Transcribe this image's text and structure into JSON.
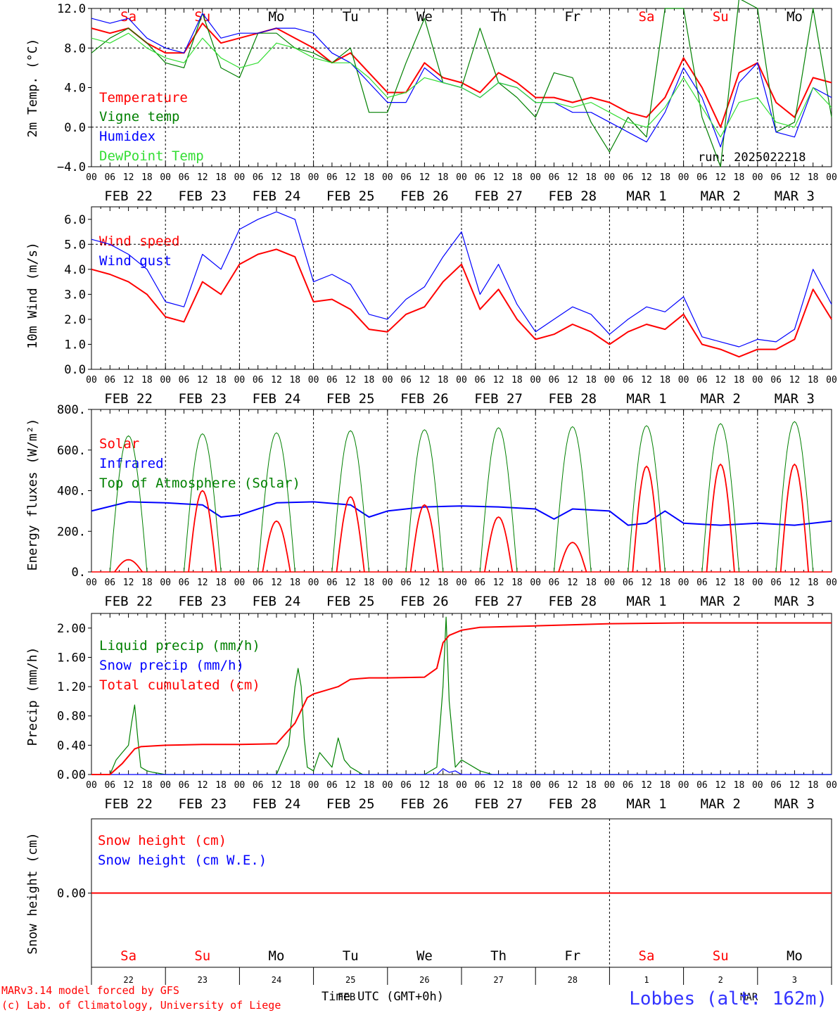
{
  "colors": {
    "red": "#ff0000",
    "green": "#008000",
    "blue": "#0000ff",
    "lightgreen": "#33dd33",
    "day_red": "#ff0000",
    "day_black": "#000000"
  },
  "axis": {
    "hour_labels": [
      "00",
      "06",
      "12",
      "18",
      "00",
      "06",
      "12",
      "18",
      "00",
      "06",
      "12",
      "18",
      "00",
      "06",
      "12",
      "18",
      "00",
      "06",
      "12",
      "18",
      "00",
      "06",
      "12",
      "18",
      "00",
      "06",
      "12",
      "18",
      "00",
      "06",
      "12",
      "18",
      "00",
      "06",
      "12",
      "18",
      "00",
      "06",
      "12",
      "18",
      "00"
    ],
    "date_labels": [
      "FEB 22",
      "FEB 23",
      "FEB 24",
      "FEB 25",
      "FEB 26",
      "FEB 27",
      "FEB 28",
      "MAR  1",
      "MAR  2",
      "MAR  3"
    ],
    "days": [
      "Sa",
      "Su",
      "Mo",
      "Tu",
      "We",
      "Th",
      "Fr",
      "Sa",
      "Su",
      "Mo"
    ],
    "day_numbers": [
      "22",
      "23",
      "24",
      "25",
      "26",
      "27",
      "28",
      "1",
      "2",
      "3"
    ],
    "feb_label": "FEB",
    "mar_label": "MAR",
    "time_label": "Time UTC (GMT+0h)"
  },
  "footer": {
    "model": "MARv3.14 model forced by GFS",
    "lab": "(c) Lab. of Climatology, University of Liege",
    "station": "Lobbes (alt: 162m)"
  },
  "chart_data": [
    {
      "type": "line",
      "ylabel": "2m Temp. (°C)",
      "ylim": [
        -4,
        12
      ],
      "yticks": [
        "12.0",
        "8.0",
        "4.0",
        "0.0",
        "−4.0"
      ],
      "x_unit": "hours since FEB 22 00 UTC",
      "run_label": "run: 2025022218",
      "legend": [
        "Temperature",
        "Vigne temp",
        "Humidex",
        "DewPoint Temp"
      ],
      "series": [
        {
          "name": "Temperature",
          "x": [
            0,
            6,
            12,
            18,
            24,
            30,
            36,
            42,
            48,
            54,
            60,
            66,
            72,
            78,
            84,
            90,
            96,
            102,
            108,
            114,
            120,
            126,
            132,
            138,
            144,
            150,
            156,
            162,
            168,
            174,
            180,
            186,
            192,
            198,
            204,
            210,
            216,
            222,
            228,
            234,
            240
          ],
          "y": [
            10.0,
            9.5,
            10.0,
            8.5,
            7.5,
            7.5,
            10.5,
            8.5,
            9.0,
            9.5,
            10.0,
            9.0,
            8.0,
            6.5,
            7.5,
            5.5,
            3.5,
            3.5,
            6.5,
            5.0,
            4.5,
            3.5,
            5.5,
            4.5,
            3.0,
            3.0,
            2.5,
            3.0,
            2.5,
            1.5,
            1.0,
            3.0,
            7.0,
            4.0,
            0.0,
            5.5,
            6.5,
            2.5,
            1.0,
            5.0,
            4.5
          ]
        },
        {
          "name": "Vigne temp",
          "x": [
            0,
            6,
            12,
            18,
            24,
            30,
            36,
            42,
            48,
            54,
            60,
            66,
            72,
            78,
            84,
            90,
            96,
            102,
            108,
            114,
            120,
            126,
            132,
            138,
            144,
            150,
            156,
            162,
            168,
            174,
            180,
            186,
            192,
            198,
            204,
            210,
            216,
            222,
            228,
            234,
            240
          ],
          "y": [
            7.5,
            9.0,
            10.0,
            8.5,
            6.5,
            6.0,
            11.5,
            6.0,
            5.0,
            9.5,
            9.5,
            8.0,
            7.5,
            6.5,
            8.0,
            1.5,
            1.5,
            6.5,
            11.0,
            4.5,
            4.0,
            10.0,
            4.5,
            3.0,
            1.0,
            5.5,
            5.0,
            0.5,
            -2.5,
            1.0,
            -1.0,
            12.0,
            12.0,
            1.0,
            -4.0,
            13.0,
            12.0,
            -0.5,
            0.5,
            12.0,
            1.0
          ]
        },
        {
          "name": "Humidex",
          "x": [
            0,
            6,
            12,
            18,
            24,
            30,
            36,
            42,
            48,
            54,
            60,
            66,
            72,
            78,
            84,
            90,
            96,
            102,
            108,
            114,
            120,
            126,
            132,
            138,
            144,
            150,
            156,
            162,
            168,
            174,
            180,
            186,
            192,
            198,
            204,
            210,
            216,
            222,
            228,
            234,
            240
          ],
          "y": [
            11.0,
            10.5,
            11.0,
            9.0,
            8.0,
            7.5,
            11.5,
            9.0,
            9.5,
            9.5,
            10.0,
            10.0,
            9.5,
            7.5,
            6.5,
            4.5,
            2.5,
            2.5,
            6.0,
            4.5,
            4.0,
            3.0,
            4.5,
            4.0,
            2.5,
            2.5,
            1.5,
            1.5,
            0.5,
            -0.5,
            -1.5,
            1.5,
            6.0,
            3.0,
            -2.0,
            4.5,
            6.5,
            -0.5,
            -1.0,
            4.0,
            3.0
          ]
        },
        {
          "name": "DewPoint Temp",
          "x": [
            0,
            6,
            12,
            18,
            24,
            30,
            36,
            42,
            48,
            54,
            60,
            66,
            72,
            78,
            84,
            90,
            96,
            102,
            108,
            114,
            120,
            126,
            132,
            138,
            144,
            150,
            156,
            162,
            168,
            174,
            180,
            186,
            192,
            198,
            204,
            210,
            216,
            222,
            228,
            234,
            240
          ],
          "y": [
            9.0,
            8.5,
            9.5,
            8.0,
            7.0,
            6.5,
            9.0,
            7.0,
            6.0,
            6.5,
            8.5,
            8.0,
            7.0,
            6.5,
            6.5,
            5.0,
            3.0,
            3.5,
            5.0,
            4.5,
            4.0,
            3.0,
            4.5,
            4.0,
            2.5,
            2.5,
            2.0,
            2.5,
            1.5,
            0.5,
            0.0,
            2.0,
            5.0,
            2.0,
            -1.0,
            2.5,
            3.0,
            0.5,
            0.0,
            4.0,
            2.0
          ]
        }
      ]
    },
    {
      "type": "line",
      "ylabel": "10m Wind (m/s)",
      "ylim": [
        0,
        6.5
      ],
      "yticks": [
        "6.0",
        "5.0",
        "4.0",
        "3.0",
        "2.0",
        "1.0",
        "0.0"
      ],
      "x_unit": "hours since FEB 22 00 UTC",
      "legend": [
        "Wind speed",
        "Wind gust"
      ],
      "series": [
        {
          "name": "Wind speed",
          "x": [
            0,
            6,
            12,
            18,
            24,
            30,
            36,
            42,
            48,
            54,
            60,
            66,
            72,
            78,
            84,
            90,
            96,
            102,
            108,
            114,
            120,
            126,
            132,
            138,
            144,
            150,
            156,
            162,
            168,
            174,
            180,
            186,
            192,
            198,
            204,
            210,
            216,
            222,
            228,
            234,
            240
          ],
          "y": [
            4.0,
            3.8,
            3.5,
            3.0,
            2.1,
            1.9,
            3.5,
            3.0,
            4.2,
            4.6,
            4.8,
            4.5,
            2.7,
            2.8,
            2.4,
            1.6,
            1.5,
            2.2,
            2.5,
            3.5,
            4.2,
            2.4,
            3.2,
            2.0,
            1.2,
            1.4,
            1.8,
            1.5,
            1.0,
            1.5,
            1.8,
            1.6,
            2.2,
            1.0,
            0.8,
            0.5,
            0.8,
            0.8,
            1.2,
            3.2,
            2.0
          ]
        },
        {
          "name": "Wind gust",
          "x": [
            0,
            6,
            12,
            18,
            24,
            30,
            36,
            42,
            48,
            54,
            60,
            66,
            72,
            78,
            84,
            90,
            96,
            102,
            108,
            114,
            120,
            126,
            132,
            138,
            144,
            150,
            156,
            162,
            168,
            174,
            180,
            186,
            192,
            198,
            204,
            210,
            216,
            222,
            228,
            234,
            240
          ],
          "y": [
            5.2,
            5.0,
            4.6,
            4.0,
            2.7,
            2.5,
            4.6,
            4.0,
            5.6,
            6.0,
            6.3,
            6.0,
            3.5,
            3.8,
            3.4,
            2.2,
            2.0,
            2.8,
            3.3,
            4.5,
            5.5,
            3.0,
            4.2,
            2.6,
            1.5,
            2.0,
            2.5,
            2.2,
            1.4,
            2.0,
            2.5,
            2.3,
            2.9,
            1.3,
            1.1,
            0.9,
            1.2,
            1.1,
            1.6,
            4.0,
            2.6
          ]
        }
      ]
    },
    {
      "type": "line",
      "ylabel": "Energy fluxes (W/m²)",
      "ylim": [
        0,
        800
      ],
      "yticks": [
        "800.",
        "600.",
        "400.",
        "200.",
        "0."
      ],
      "x_unit": "hours since FEB 22 00 UTC",
      "legend": [
        "Solar",
        "Infrared",
        "Top of Atmosphere (Solar)"
      ],
      "day_peaks": {
        "top_of_atmosphere": [
          670,
          680,
          685,
          695,
          700,
          710,
          715,
          720,
          730,
          740
        ],
        "solar": [
          60,
          400,
          250,
          370,
          330,
          270,
          145,
          520,
          530,
          530
        ]
      },
      "series": [
        {
          "name": "Infrared",
          "x": [
            0,
            12,
            24,
            36,
            42,
            48,
            60,
            72,
            84,
            90,
            96,
            108,
            120,
            132,
            144,
            150,
            156,
            168,
            174,
            180,
            186,
            192,
            204,
            216,
            228,
            240
          ],
          "y": [
            300,
            345,
            340,
            330,
            270,
            280,
            340,
            345,
            330,
            270,
            300,
            320,
            325,
            320,
            310,
            260,
            310,
            300,
            230,
            240,
            300,
            240,
            230,
            240,
            230,
            250
          ]
        }
      ]
    },
    {
      "type": "line",
      "ylabel": "Precip (mm/h)",
      "ylim": [
        0,
        2.2
      ],
      "yticks": [
        "2.00",
        "1.60",
        "1.20",
        "0.80",
        "0.40",
        "0.00"
      ],
      "x_unit": "hours since FEB 22 00 UTC",
      "legend": [
        "Liquid precip (mm/h)",
        "Snow precip (mm/h)",
        "Total cumulated (cm)"
      ],
      "series": [
        {
          "name": "Liquid precip (mm/h)",
          "x": [
            0,
            6,
            8,
            10,
            12,
            13,
            14,
            15,
            16,
            18,
            20,
            24,
            60,
            64,
            66,
            67,
            68,
            69,
            70,
            72,
            74,
            78,
            80,
            82,
            84,
            86,
            88,
            90,
            108,
            112,
            114,
            115,
            116,
            118,
            120,
            122,
            126,
            130,
            240
          ],
          "y": [
            0,
            0,
            0.2,
            0.3,
            0.4,
            0.7,
            0.95,
            0.5,
            0.1,
            0.05,
            0.03,
            0,
            0,
            0.4,
            1.2,
            1.45,
            1.2,
            0.5,
            0.1,
            0.05,
            0.3,
            0.1,
            0.5,
            0.2,
            0.1,
            0.05,
            0,
            0,
            0,
            0.1,
            1.2,
            2.15,
            1.0,
            0.1,
            0.2,
            0.15,
            0.05,
            0,
            0
          ]
        },
        {
          "name": "Snow precip (mm/h)",
          "x": [
            0,
            112,
            114,
            116,
            118,
            120,
            240
          ],
          "y": [
            0,
            0,
            0.08,
            0.03,
            0.05,
            0,
            0
          ]
        },
        {
          "name": "Total cumulated (cm)",
          "x": [
            0,
            6,
            10,
            14,
            16,
            24,
            36,
            48,
            60,
            66,
            70,
            72,
            76,
            80,
            84,
            90,
            96,
            108,
            112,
            114,
            116,
            120,
            126,
            144,
            168,
            192,
            216,
            240
          ],
          "y": [
            0,
            0,
            0.15,
            0.35,
            0.38,
            0.4,
            0.41,
            0.41,
            0.42,
            0.7,
            1.05,
            1.1,
            1.15,
            1.2,
            1.3,
            1.32,
            1.32,
            1.33,
            1.45,
            1.8,
            1.9,
            1.97,
            2.01,
            2.03,
            2.06,
            2.07,
            2.07,
            2.07
          ]
        }
      ]
    },
    {
      "type": "line",
      "ylabel": "Snow height (cm)",
      "ylim": [
        -1,
        1
      ],
      "yticks": [
        "0.00"
      ],
      "x_unit": "hours since FEB 22 00 UTC",
      "legend": [
        "Snow height (cm)",
        "Snow height (cm W.E.)"
      ],
      "series": [
        {
          "name": "Snow height (cm)",
          "x": [
            0,
            240
          ],
          "y": [
            0,
            0
          ]
        }
      ]
    }
  ]
}
